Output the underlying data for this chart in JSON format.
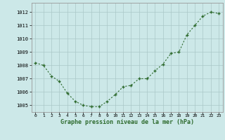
{
  "x": [
    0,
    1,
    2,
    3,
    4,
    5,
    6,
    7,
    8,
    9,
    10,
    11,
    12,
    13,
    14,
    15,
    16,
    17,
    18,
    19,
    20,
    21,
    22,
    23
  ],
  "y": [
    1008.2,
    1008.0,
    1007.2,
    1006.8,
    1005.9,
    1005.3,
    1005.0,
    1004.9,
    1004.9,
    1005.3,
    1005.8,
    1006.4,
    1006.5,
    1007.0,
    1007.0,
    1007.6,
    1008.1,
    1008.9,
    1009.0,
    1010.3,
    1011.0,
    1011.7,
    1012.0,
    1011.9
  ],
  "line_color": "#2d6a2d",
  "marker": "+",
  "bg_color": "#cce8e8",
  "grid_color": "#aac8c8",
  "xlabel": "Graphe pression niveau de la mer (hPa)",
  "xlabel_color": "#2d6a2d",
  "yticks": [
    1005,
    1006,
    1007,
    1008,
    1009,
    1010,
    1011,
    1012
  ],
  "ymin": 1004.5,
  "ymax": 1012.7
}
